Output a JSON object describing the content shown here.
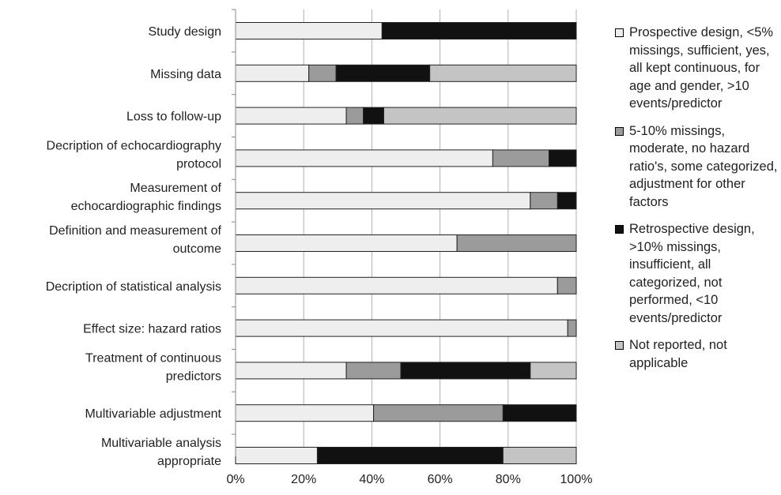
{
  "chart_data": {
    "type": "bar",
    "stacked": true,
    "orientation": "horizontal",
    "percent": true,
    "categories": [
      "Study design",
      "Missing data",
      "Loss to follow-up",
      "Decription of echocardiography protocol",
      "Measurement of echocardiographic findings",
      "Definition and measurement of outcome",
      "Decription of statistical analysis",
      "Effect size: hazard ratios",
      "Treatment of continuous predictors",
      "Multivariable adjustment",
      "Multivariable analysis appropriate"
    ],
    "category_lines": [
      [
        "Study design"
      ],
      [
        "Missing data"
      ],
      [
        "Loss to follow-up"
      ],
      [
        "Decription of echocardiography",
        "protocol"
      ],
      [
        "Measurement of",
        "echocardiographic findings"
      ],
      [
        "Definition and measurement of",
        "outcome"
      ],
      [
        "Decription of statistical analysis"
      ],
      [
        "Effect size: hazard ratios"
      ],
      [
        "Treatment of continuous",
        "predictors"
      ],
      [
        "Multivariable adjustment"
      ],
      [
        "Multivariable analysis",
        "appropriate"
      ]
    ],
    "series": [
      {
        "name": "Prospective design, <5% missings, sufficient, yes, all kept continuous, for age and gender, >10 events/predictor",
        "color": "#eeeeee",
        "values": [
          43,
          21.5,
          32.5,
          75.5,
          86.5,
          65,
          94.5,
          97.5,
          32.5,
          40.5,
          24
        ]
      },
      {
        "name": "5-10% missings, moderate, no hazard ratio's, some categorized, adjustment for other factors",
        "color": "#9b9b9b",
        "values": [
          0,
          8,
          5,
          16.5,
          8,
          35,
          5.5,
          2.5,
          16,
          38,
          0
        ]
      },
      {
        "name": "Retrospective design, >10% missings, insufficient, all categorized, not performed, <10 events/predictor",
        "color": "#111111",
        "values": [
          57,
          27.5,
          6,
          8,
          5.5,
          0,
          0,
          0,
          38,
          21.5,
          54.5
        ]
      },
      {
        "name": "Not reported, not applicable",
        "color": "#c4c4c4",
        "values": [
          0,
          43,
          56.5,
          0,
          0,
          0,
          0,
          0,
          13.5,
          0,
          21.5
        ]
      }
    ],
    "x_ticks": [
      "0%",
      "20%",
      "40%",
      "60%",
      "80%",
      "100%"
    ],
    "xlim": [
      0,
      100
    ],
    "grid": true,
    "legend_position": "right"
  },
  "legend": {
    "items": [
      "Prospective design, <5% missings, sufficient, yes, all kept continuous, for age and gender, >10 events/predictor",
      "5-10% missings, moderate, no hazard ratio's, some categorized, adjustment for other factors",
      "Retrospective design, >10% missings, insufficient, all categorized, not performed, <10 events/predictor",
      "Not reported, not applicable"
    ]
  }
}
